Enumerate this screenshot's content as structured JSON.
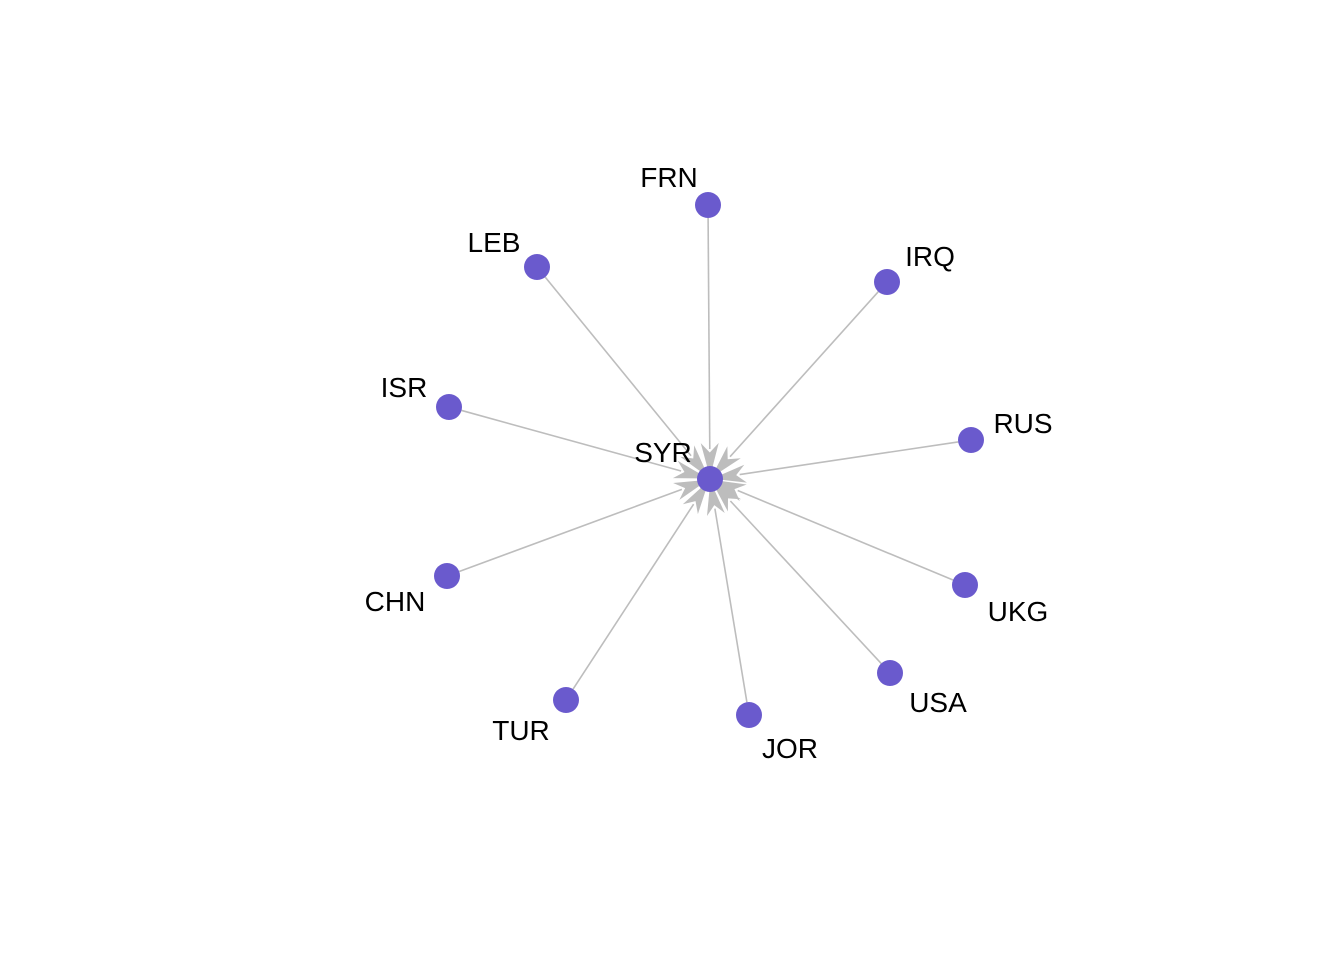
{
  "graph": {
    "center": "SYR",
    "nodes": [
      "SYR",
      "FRN",
      "IRQ",
      "RUS",
      "UKG",
      "USA",
      "JOR",
      "TUR",
      "CHN",
      "ISR",
      "LEB"
    ],
    "edges": [
      {
        "from": "FRN",
        "to": "SYR"
      },
      {
        "from": "IRQ",
        "to": "SYR"
      },
      {
        "from": "RUS",
        "to": "SYR"
      },
      {
        "from": "UKG",
        "to": "SYR"
      },
      {
        "from": "USA",
        "to": "SYR"
      },
      {
        "from": "JOR",
        "to": "SYR"
      },
      {
        "from": "TUR",
        "to": "SYR"
      },
      {
        "from": "CHN",
        "to": "SYR"
      },
      {
        "from": "ISR",
        "to": "SYR"
      },
      {
        "from": "LEB",
        "to": "SYR"
      }
    ],
    "colors": {
      "node": "#6a5acd",
      "edge": "#bdbdbd",
      "label": "#000000"
    }
  }
}
